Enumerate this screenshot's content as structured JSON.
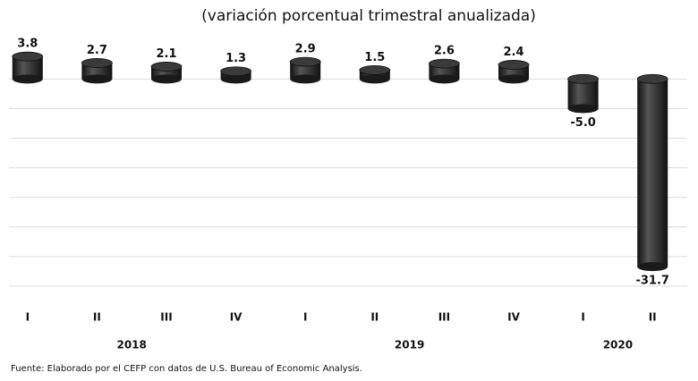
{
  "chart_data": {
    "type": "bar",
    "title": "(variación porcentual trimestral anualizada)",
    "categories": [
      "I",
      "II",
      "III",
      "IV",
      "I",
      "II",
      "III",
      "IV",
      "I",
      "II"
    ],
    "groups": [
      {
        "label": "2018",
        "size": 4
      },
      {
        "label": "2019",
        "size": 4
      },
      {
        "label": "2020",
        "size": 2
      }
    ],
    "values": [
      3.8,
      2.7,
      2.1,
      1.3,
      2.9,
      1.5,
      2.6,
      2.4,
      -5.0,
      -31.7
    ],
    "value_labels": [
      "3.8",
      "2.7",
      "2.1",
      "1.3",
      "2.9",
      "1.5",
      "2.6",
      "2.4",
      "-5.0",
      "-31.7"
    ],
    "color": "#2a2a2a",
    "ylim": [
      -35,
      7
    ],
    "yticks": [
      0,
      -5,
      -10,
      -15,
      -20,
      -25,
      -30,
      -35
    ],
    "grid": true,
    "source": "Fuente: Elaborado por el CEFP con datos de U.S. Bureau of Economic Analysis."
  }
}
